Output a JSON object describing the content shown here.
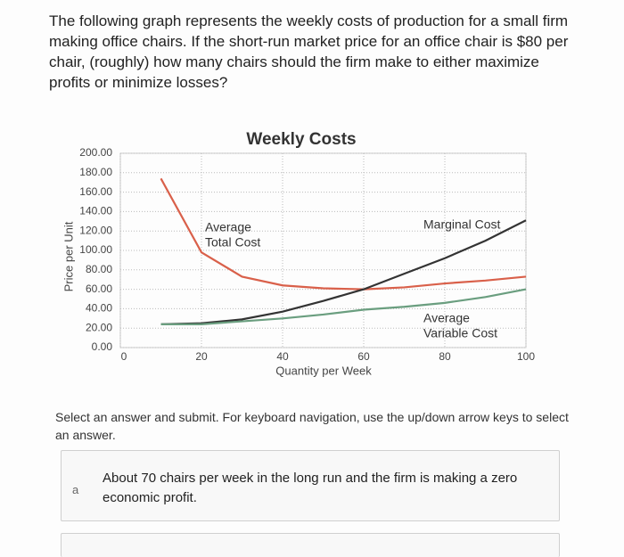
{
  "question": "The following graph represents the weekly costs of production for a small firm making office chairs. If the short-run market price for an office chair is $80 per chair, (roughly) how many chairs should the firm make to either maximize profits or minimize losses?",
  "chart_data": {
    "type": "line",
    "title": "Weekly Costs",
    "x_label": "Quantity per Week",
    "y_label": "Price per Unit",
    "x": [
      10,
      20,
      30,
      40,
      50,
      60,
      70,
      80,
      90,
      100
    ],
    "series": [
      {
        "name": "Average Total Cost",
        "color": "#d9604a",
        "values": [
          174,
          98,
          73,
          64,
          61,
          60,
          62,
          66,
          69,
          73
        ]
      },
      {
        "name": "Marginal Cost",
        "color": "#333333",
        "values": [
          24,
          25,
          29,
          37,
          48,
          60,
          76,
          92,
          110,
          131
        ]
      },
      {
        "name": "Average Variable Cost",
        "color": "#6a9e7f",
        "values": [
          24,
          24,
          27,
          30,
          34,
          39,
          42,
          46,
          52,
          60
        ]
      }
    ],
    "annotations": [
      [
        "Average",
        "Total Cost"
      ],
      [
        "Marginal Cost"
      ],
      [
        "Average",
        "Variable Cost"
      ]
    ],
    "xlim": [
      0,
      100
    ],
    "ylim": [
      0,
      200
    ],
    "xticks": [
      0,
      20,
      40,
      60,
      80,
      100
    ],
    "yticks": [
      {
        "value": 0,
        "label": "0.00"
      },
      {
        "value": 20,
        "label": "20.00"
      },
      {
        "value": 40,
        "label": "40.00"
      },
      {
        "value": 60,
        "label": "60.00"
      },
      {
        "value": 80,
        "label": "80.00"
      },
      {
        "value": 100,
        "label": "100.00"
      },
      {
        "value": 120,
        "label": "120.00"
      },
      {
        "value": 140,
        "label": "140.00"
      },
      {
        "value": 160,
        "label": "160.00"
      },
      {
        "value": 180,
        "label": "180.00"
      },
      {
        "value": 200,
        "label": "200.00"
      }
    ],
    "grid": true
  },
  "instruction": "Select an answer and submit. For keyboard navigation, use the up/down arrow keys to select an answer.",
  "options": [
    {
      "letter": "a",
      "text": "About 70 chairs per week in the long run and the firm is making a zero economic profit."
    }
  ]
}
